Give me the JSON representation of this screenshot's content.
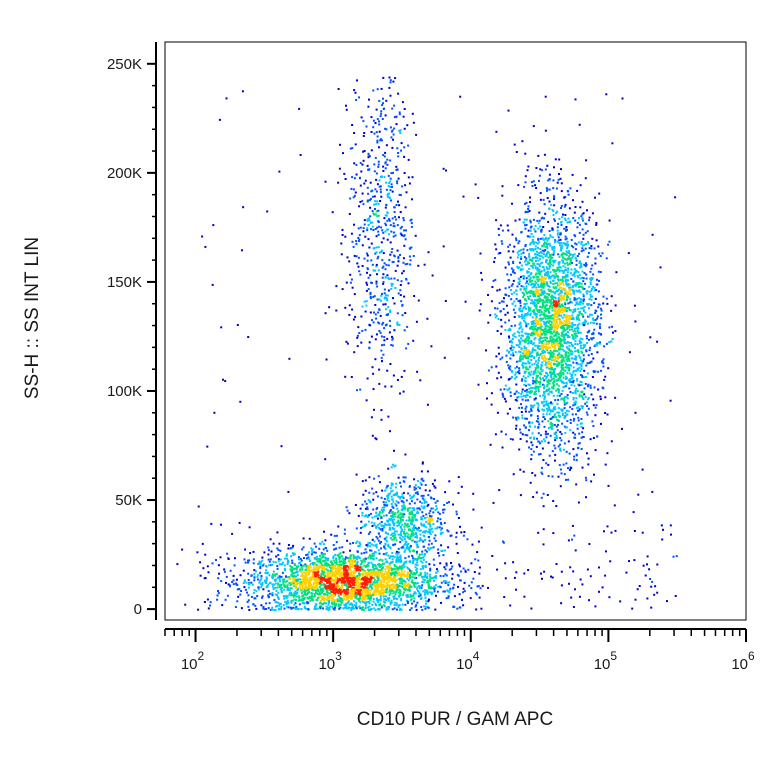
{
  "chart_data": {
    "type": "scatter",
    "subtype": "flow cytometry density dot plot",
    "xlabel": "CD10 PUR / GAM APC",
    "ylabel": "SS-H :: SS INT LIN",
    "x_scale": "log",
    "y_scale": "linear",
    "xlim": [
      60,
      1000000
    ],
    "ylim": [
      -5000,
      260000
    ],
    "x_ticks": [
      {
        "base": "10",
        "exp": "2",
        "value": 100
      },
      {
        "base": "10",
        "exp": "3",
        "value": 1000
      },
      {
        "base": "10",
        "exp": "4",
        "value": 10000
      },
      {
        "base": "10",
        "exp": "5",
        "value": 100000
      },
      {
        "base": "10",
        "exp": "6",
        "value": 1000000
      }
    ],
    "y_ticks": [
      {
        "label": "0",
        "value": 0
      },
      {
        "label": "50K",
        "value": 50000
      },
      {
        "label": "100K",
        "value": 100000
      },
      {
        "label": "150K",
        "value": 150000
      },
      {
        "label": "200K",
        "value": 200000
      },
      {
        "label": "250K",
        "value": 250000
      }
    ],
    "grid": false,
    "legend": "none",
    "color_scale": [
      "#0000c8",
      "#0050ff",
      "#00c8ff",
      "#00e080",
      "#ffd000",
      "#ff2000"
    ],
    "populations": [
      {
        "x_center": 1200,
        "y_center": 13000,
        "x_spread_decades": 0.35,
        "y_spread": 7000,
        "count": 2600,
        "density": "high"
      },
      {
        "x_center": 3200,
        "y_center": 40000,
        "x_spread_decades": 0.17,
        "y_spread": 10000,
        "count": 700,
        "density": "medium"
      },
      {
        "x_center": 38000,
        "y_center": 130000,
        "x_spread_decades": 0.17,
        "y_spread": 28000,
        "count": 3000,
        "density": "medium"
      },
      {
        "x_center": 2200,
        "y_center": 175000,
        "x_spread_decades": 0.12,
        "y_spread": 40000,
        "count": 650,
        "density": "low"
      }
    ]
  }
}
